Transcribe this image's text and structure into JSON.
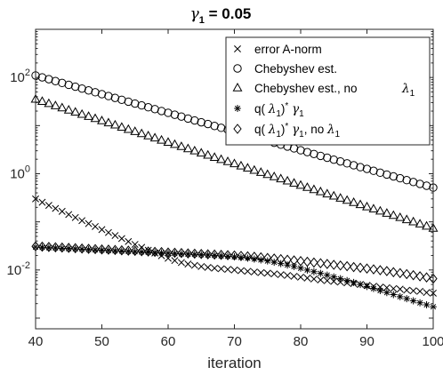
{
  "chart_data": {
    "type": "scatter",
    "title": {
      "symbol": "γ",
      "sub": "1",
      "rest": " = 0.05"
    },
    "xlabel": "iteration",
    "ylabel": "",
    "xlim": [
      40,
      100
    ],
    "ylim": [
      0.0006,
      1000
    ],
    "yscale": "log",
    "xticks": [
      40,
      50,
      60,
      70,
      80,
      90,
      100
    ],
    "yticks": [
      {
        "value": 0.01,
        "base": "10",
        "exp": "-2"
      },
      {
        "value": 1,
        "base": "10",
        "exp": "0"
      },
      {
        "value": 100,
        "base": "10",
        "exp": "2"
      }
    ],
    "grid": false,
    "legend_position": "top-right",
    "x": [
      40,
      41,
      42,
      43,
      44,
      45,
      46,
      47,
      48,
      49,
      50,
      51,
      52,
      53,
      54,
      55,
      56,
      57,
      58,
      59,
      60,
      61,
      62,
      63,
      64,
      65,
      66,
      67,
      68,
      69,
      70,
      71,
      72,
      73,
      74,
      75,
      76,
      77,
      78,
      79,
      80,
      81,
      82,
      83,
      84,
      85,
      86,
      87,
      88,
      89,
      90,
      91,
      92,
      93,
      94,
      95,
      96,
      97,
      98,
      99,
      100
    ],
    "series": [
      {
        "name": "error A-norm",
        "marker": "x",
        "values": [
          0.3,
          0.255,
          0.22,
          0.19,
          0.165,
          0.142,
          0.123,
          0.106,
          0.092,
          0.08,
          0.069,
          0.06,
          0.052,
          0.045,
          0.039,
          0.034,
          0.0295,
          0.0257,
          0.0225,
          0.0198,
          0.0175,
          0.0157,
          0.0143,
          0.0133,
          0.0125,
          0.0118,
          0.0113,
          0.0109,
          0.0106,
          0.0103,
          0.01,
          0.0097,
          0.0094,
          0.0091,
          0.0088,
          0.0086,
          0.0083,
          0.008,
          0.0077,
          0.0074,
          0.0071,
          0.0068,
          0.0065,
          0.0062,
          0.006,
          0.0058,
          0.0056,
          0.0054,
          0.0052,
          0.005,
          0.0048,
          0.0046,
          0.0044,
          0.0043,
          0.0041,
          0.004,
          0.0038,
          0.0037,
          0.0036,
          0.0034,
          0.0033
        ]
      },
      {
        "name": "Chebyshev est.",
        "marker": "o",
        "values": [
          110,
          100.6,
          92.0,
          84.1,
          76.9,
          70.3,
          64.3,
          58.8,
          53.8,
          49.2,
          45.0,
          41.1,
          37.6,
          34.4,
          31.4,
          28.7,
          26.3,
          24.0,
          22.0,
          20.1,
          18.4,
          16.8,
          15.4,
          14.0,
          12.8,
          11.7,
          10.8,
          9.82,
          8.98,
          8.21,
          7.51,
          6.87,
          6.28,
          5.74,
          5.25,
          4.8,
          4.39,
          4.02,
          3.67,
          3.36,
          3.07,
          2.81,
          2.57,
          2.35,
          2.15,
          1.96,
          1.8,
          1.64,
          1.5,
          1.37,
          1.26,
          1.15,
          1.05,
          0.962,
          0.88,
          0.805,
          0.736,
          0.673,
          0.615,
          0.563,
          0.515
        ]
      },
      {
        "name": "Chebyshev est., no",
        "marker": "triangle",
        "values": [
          35,
          31.6,
          28.5,
          25.7,
          23.2,
          20.9,
          18.9,
          17.0,
          15.4,
          13.9,
          12.5,
          11.3,
          10.2,
          9.18,
          8.28,
          7.47,
          6.74,
          6.08,
          5.49,
          4.95,
          4.47,
          4.03,
          3.64,
          3.28,
          2.96,
          2.67,
          2.41,
          2.17,
          1.96,
          1.77,
          1.6,
          1.44,
          1.3,
          1.17,
          1.06,
          0.955,
          0.862,
          0.777,
          0.701,
          0.633,
          0.571,
          0.515,
          0.465,
          0.419,
          0.378,
          0.341,
          0.308,
          0.278,
          0.251,
          0.226,
          0.204,
          0.184,
          0.166,
          0.15,
          0.135,
          0.122,
          0.11,
          0.0994,
          0.0897,
          0.0809,
          0.073
        ]
      },
      {
        "name": "q( λ )* γ",
        "marker": "asterisk",
        "values": [
          0.03,
          0.0296,
          0.0291,
          0.0287,
          0.0283,
          0.0279,
          0.0275,
          0.0271,
          0.0267,
          0.0263,
          0.0259,
          0.0255,
          0.0251,
          0.0248,
          0.0244,
          0.0241,
          0.0237,
          0.0234,
          0.023,
          0.0227,
          0.0224,
          0.022,
          0.0217,
          0.0214,
          0.0211,
          0.0208,
          0.0205,
          0.0201,
          0.0197,
          0.0193,
          0.0188,
          0.0182,
          0.0176,
          0.0169,
          0.0162,
          0.0154,
          0.0145,
          0.0136,
          0.0127,
          0.0118,
          0.0109,
          0.01,
          0.00923,
          0.0085,
          0.00782,
          0.00718,
          0.00659,
          0.00603,
          0.0055,
          0.005,
          0.00455,
          0.00412,
          0.00374,
          0.00339,
          0.00308,
          0.00279,
          0.00253,
          0.00229,
          0.00208,
          0.00189,
          0.00172
        ]
      },
      {
        "name": "q( λ )* γ , no",
        "marker": "diamond",
        "values": [
          0.031,
          0.0305,
          0.0301,
          0.0296,
          0.0292,
          0.0288,
          0.0284,
          0.0279,
          0.0275,
          0.0271,
          0.0267,
          0.0264,
          0.026,
          0.0256,
          0.0252,
          0.0249,
          0.0245,
          0.0242,
          0.0238,
          0.0235,
          0.0231,
          0.0228,
          0.0225,
          0.0221,
          0.0218,
          0.0215,
          0.0212,
          0.0209,
          0.0206,
          0.0203,
          0.02,
          0.0196,
          0.0192,
          0.0188,
          0.0183,
          0.0178,
          0.0173,
          0.0168,
          0.0163,
          0.0158,
          0.0153,
          0.0148,
          0.0143,
          0.0138,
          0.0133,
          0.0128,
          0.0124,
          0.012,
          0.0115,
          0.0111,
          0.0107,
          0.0103,
          0.0099,
          0.0095,
          0.009,
          0.0086,
          0.0082,
          0.0078,
          0.0074,
          0.007,
          0.0066
        ]
      }
    ],
    "legend_entries": [
      {
        "marker": "x",
        "label": "error A-norm",
        "sub": ""
      },
      {
        "marker": "o",
        "label": "Chebyshev est.",
        "sub": ""
      },
      {
        "marker": "triangle",
        "label": "Chebyshev est., no",
        "sub": "λ1"
      },
      {
        "marker": "asterisk",
        "label": "q( λ )* γ",
        "sub": ""
      },
      {
        "marker": "diamond",
        "label": "q( λ )* γ , no",
        "sub": "λ1"
      }
    ]
  }
}
